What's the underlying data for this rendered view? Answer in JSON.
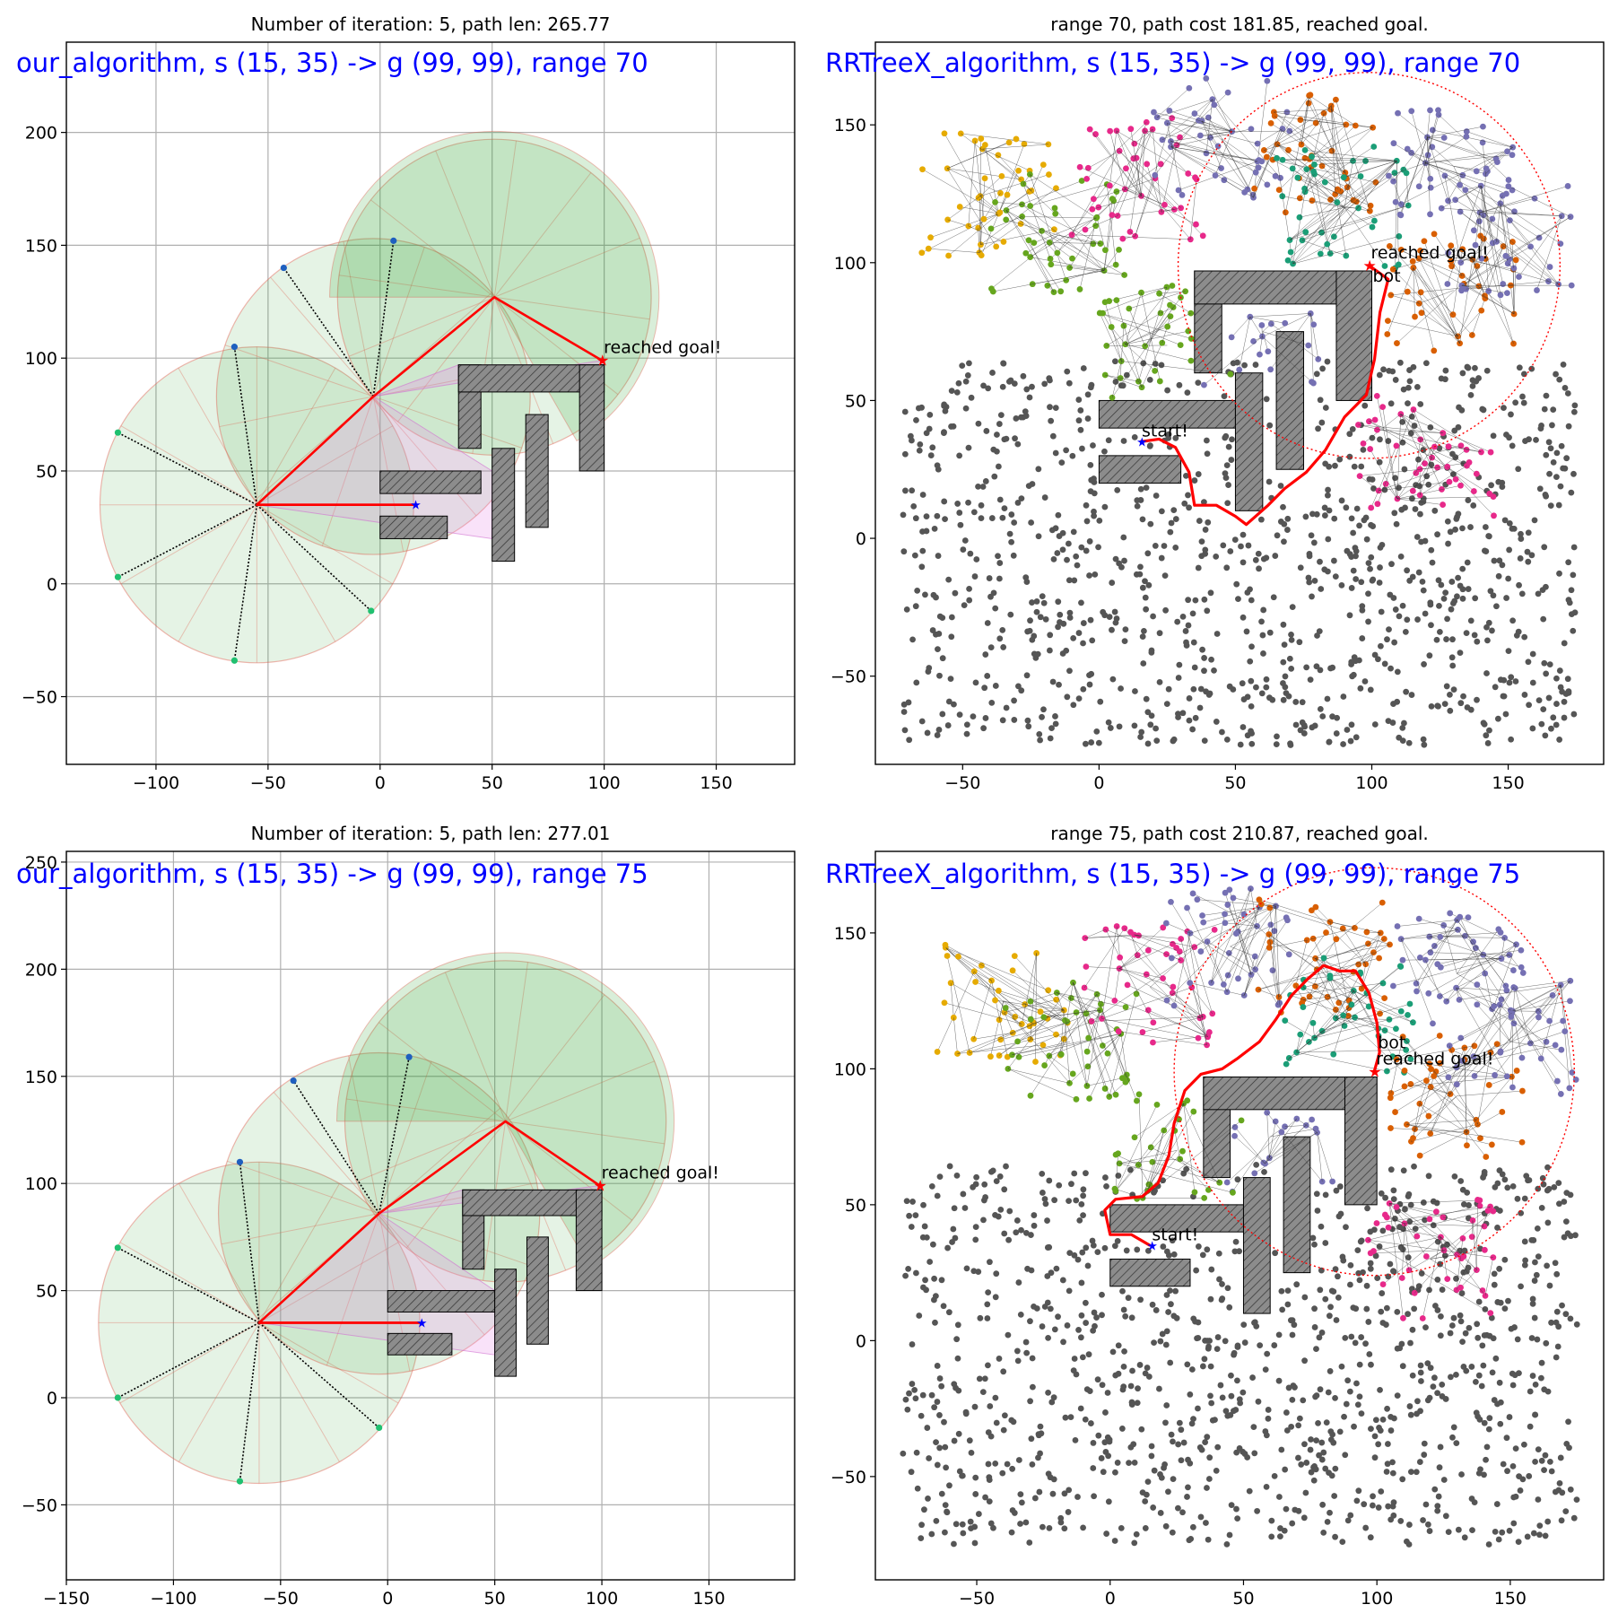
{
  "chart_data": [
    {
      "type": "scatter",
      "title": "Number of iteration: 5, path len: 265.77",
      "banner": "our_algorithm, s (15, 35) -> g (99, 99), range 70",
      "xlim": [
        -140,
        185
      ],
      "ylim": [
        -80,
        240
      ],
      "xticks": [
        -100,
        -50,
        0,
        50,
        100,
        150
      ],
      "yticks": [
        -50,
        0,
        50,
        100,
        150,
        200
      ],
      "grid": true,
      "start": [
        15,
        35
      ],
      "goal": [
        99,
        99
      ],
      "range": 70,
      "goal_label": "reached goal!",
      "hubs": [
        [
          -55,
          35
        ],
        [
          -3,
          83
        ],
        [
          51,
          127
        ]
      ],
      "sensor_points": [
        [
          -117,
          67
        ],
        [
          -117,
          3
        ],
        [
          -65,
          105
        ],
        [
          -65,
          -34
        ],
        [
          -4,
          -12
        ],
        [
          -43,
          140
        ],
        [
          6,
          152
        ]
      ],
      "path": [
        [
          15,
          35
        ],
        [
          -55,
          35
        ],
        [
          -3,
          83
        ],
        [
          51,
          127
        ],
        [
          99,
          99
        ]
      ],
      "obstacles": [
        [
          35,
          60,
          10,
          37
        ],
        [
          35,
          85,
          65,
          12
        ],
        [
          89,
          50,
          11,
          47
        ],
        [
          0,
          40,
          45,
          10
        ],
        [
          0,
          20,
          30,
          10
        ],
        [
          50,
          10,
          10,
          50
        ],
        [
          65,
          25,
          10,
          50
        ]
      ]
    },
    {
      "type": "scatter",
      "title": "range 70, path cost 181.85, reached goal.",
      "banner": "RRTreeX_algorithm, s (15, 35) -> g (99, 99), range 70",
      "xlim": [
        -82,
        185
      ],
      "ylim": [
        -82,
        180
      ],
      "xticks": [
        -50,
        0,
        50,
        100,
        150
      ],
      "yticks": [
        -50,
        0,
        50,
        100,
        150
      ],
      "grid": false,
      "start": [
        15,
        35
      ],
      "goal": [
        99,
        99
      ],
      "range": 70,
      "start_label": "start!",
      "goal_label": "reached goal!",
      "bot_label": "bot",
      "path": [
        [
          15,
          35
        ],
        [
          22,
          36
        ],
        [
          28,
          33
        ],
        [
          33,
          24
        ],
        [
          35,
          12
        ],
        [
          43,
          12
        ],
        [
          50,
          8
        ],
        [
          54,
          5
        ],
        [
          62,
          12
        ],
        [
          68,
          18
        ],
        [
          76,
          24
        ],
        [
          83,
          32
        ],
        [
          90,
          44
        ],
        [
          98,
          52
        ],
        [
          101,
          65
        ],
        [
          103,
          82
        ],
        [
          106,
          94
        ],
        [
          99,
          99
        ]
      ],
      "obstacles": [
        [
          0,
          40,
          50,
          10
        ],
        [
          0,
          20,
          30,
          10
        ],
        [
          35,
          60,
          10,
          37
        ],
        [
          35,
          85,
          65,
          12
        ],
        [
          87,
          50,
          13,
          47
        ],
        [
          50,
          10,
          10,
          50
        ],
        [
          65,
          25,
          10,
          50
        ]
      ]
    },
    {
      "type": "scatter",
      "title": "Number of iteration: 5, path len: 277.01",
      "banner": "our_algorithm, s (15, 35) -> g (99, 99), range 75",
      "xlim": [
        -150,
        190
      ],
      "ylim": [
        -85,
        255
      ],
      "xticks": [
        -150,
        -100,
        -50,
        0,
        50,
        100,
        150
      ],
      "yticks": [
        -50,
        0,
        50,
        100,
        150,
        200,
        250
      ],
      "grid": true,
      "start": [
        15,
        35
      ],
      "goal": [
        99,
        99
      ],
      "range": 75,
      "goal_label": "reached goal!",
      "hubs": [
        [
          -60,
          35
        ],
        [
          -4,
          86
        ],
        [
          55,
          129
        ]
      ],
      "sensor_points": [
        [
          -126,
          70
        ],
        [
          -126,
          0
        ],
        [
          -69,
          110
        ],
        [
          -69,
          -39
        ],
        [
          -4,
          -14
        ],
        [
          -44,
          148
        ],
        [
          10,
          159
        ]
      ],
      "path": [
        [
          15,
          35
        ],
        [
          -60,
          35
        ],
        [
          -4,
          86
        ],
        [
          55,
          129
        ],
        [
          99,
          99
        ]
      ],
      "obstacles": [
        [
          35,
          60,
          10,
          37
        ],
        [
          35,
          85,
          65,
          12
        ],
        [
          88,
          50,
          12,
          47
        ],
        [
          0,
          40,
          50,
          10
        ],
        [
          0,
          20,
          30,
          10
        ],
        [
          50,
          10,
          10,
          50
        ],
        [
          65,
          25,
          10,
          50
        ]
      ]
    },
    {
      "type": "scatter",
      "title": "range 75, path cost 210.87, reached goal.",
      "banner": "RRTreeX_algorithm, s (15, 35) -> g (99, 99), range 75",
      "xlim": [
        -88,
        185
      ],
      "ylim": [
        -88,
        180
      ],
      "xticks": [
        -50,
        0,
        50,
        100,
        150
      ],
      "yticks": [
        -50,
        0,
        50,
        100,
        150
      ],
      "grid": false,
      "start": [
        15,
        35
      ],
      "goal": [
        99,
        99
      ],
      "range": 75,
      "start_label": "start!",
      "goal_label": "reached goal!",
      "bot_label": "bot",
      "path": [
        [
          15,
          35
        ],
        [
          8,
          39
        ],
        [
          0,
          39
        ],
        [
          -2,
          48
        ],
        [
          2,
          52
        ],
        [
          12,
          53
        ],
        [
          18,
          58
        ],
        [
          22,
          68
        ],
        [
          24,
          80
        ],
        [
          28,
          92
        ],
        [
          34,
          98
        ],
        [
          42,
          100
        ],
        [
          48,
          104
        ],
        [
          56,
          110
        ],
        [
          62,
          118
        ],
        [
          68,
          127
        ],
        [
          74,
          133
        ],
        [
          80,
          138
        ],
        [
          86,
          136
        ],
        [
          92,
          136
        ],
        [
          97,
          128
        ],
        [
          100,
          117
        ],
        [
          101,
          106
        ],
        [
          99,
          99
        ]
      ],
      "obstacles": [
        [
          0,
          40,
          50,
          10
        ],
        [
          0,
          20,
          30,
          10
        ],
        [
          35,
          60,
          10,
          37
        ],
        [
          35,
          85,
          65,
          12
        ],
        [
          88,
          50,
          12,
          47
        ],
        [
          50,
          10,
          10,
          50
        ],
        [
          65,
          25,
          10,
          50
        ]
      ]
    }
  ],
  "colors": {
    "path": "#ff0000",
    "sector_fill": "#2ca02c",
    "obstacle": "#8c8c8c",
    "banner": "#0000ff",
    "gray_samples": "#555555",
    "tree_colors": [
      "#e6ab02",
      "#66a61e",
      "#e7298a",
      "#7570b3",
      "#d95f02",
      "#1b9e77"
    ]
  }
}
